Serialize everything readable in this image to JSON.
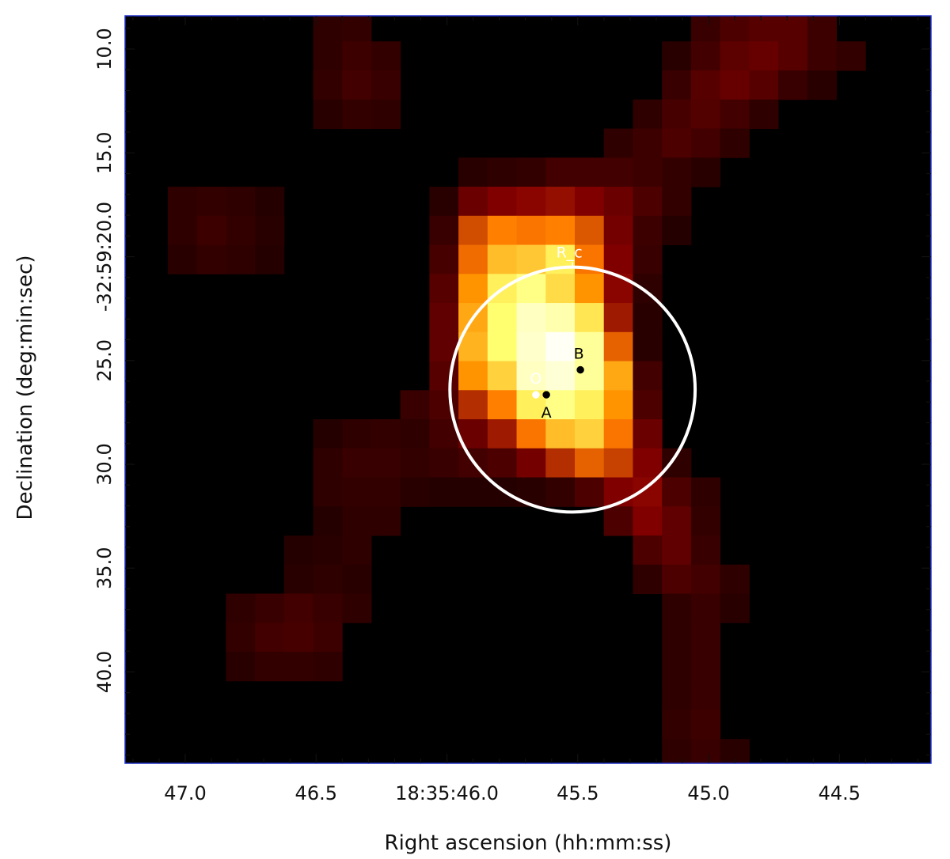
{
  "chart_data": {
    "type": "heatmap",
    "title": "",
    "xlabel": "Right ascension (hh:mm:ss)",
    "ylabel": "Declination (deg:min:sec)",
    "colormap": "afmhot",
    "frame_color": "#2233cc",
    "x_ticks": [
      {
        "value": 47.0,
        "label": "47.0"
      },
      {
        "value": 46.5,
        "label": "46.5"
      },
      {
        "value": 46.0,
        "label": "18:35:46.0"
      },
      {
        "value": 45.5,
        "label": "45.5"
      },
      {
        "value": 45.0,
        "label": "45.0"
      },
      {
        "value": 44.5,
        "label": "44.5"
      }
    ],
    "y_ticks": [
      {
        "value": 10.0,
        "label": "10.0"
      },
      {
        "value": 15.0,
        "label": "15.0"
      },
      {
        "value": 20.0,
        "label": "-32:59:20.0"
      },
      {
        "value": 25.0,
        "label": "25.0"
      },
      {
        "value": 30.0,
        "label": "30.0"
      },
      {
        "value": 35.0,
        "label": "35.0"
      },
      {
        "value": 40.0,
        "label": "40.0"
      }
    ],
    "xlim": [
      47.23,
      44.15
    ],
    "ylim": [
      44.4,
      8.4
    ],
    "grid": false,
    "pixels": {
      "x_start": 47.178,
      "dx": -0.1111,
      "y_start": 8.23,
      "dy": 1.4,
      "rows": [
        [
          0,
          0,
          0,
          0,
          0,
          0,
          0.04,
          0.05,
          0,
          0,
          0,
          0,
          0,
          0,
          0,
          0,
          0,
          0,
          0,
          0.06,
          0.1,
          0.12,
          0.12,
          0.07,
          0,
          0,
          0
        ],
        [
          0,
          0,
          0,
          0,
          0,
          0,
          0.04,
          0.07,
          0.05,
          0,
          0,
          0,
          0,
          0,
          0,
          0,
          0,
          0,
          0.03,
          0.08,
          0.13,
          0.15,
          0.12,
          0.07,
          0.05,
          0,
          0
        ],
        [
          0,
          0,
          0,
          0,
          0,
          0,
          0.05,
          0.08,
          0.06,
          0,
          0,
          0,
          0,
          0,
          0,
          0,
          0,
          0,
          0.06,
          0.12,
          0.15,
          0.12,
          0.06,
          0.03,
          0,
          0,
          0
        ],
        [
          0,
          0,
          0,
          0,
          0,
          0,
          0.03,
          0.05,
          0.04,
          0,
          0,
          0,
          0,
          0,
          0,
          0,
          0,
          0.04,
          0.09,
          0.11,
          0.08,
          0.04,
          0,
          0,
          0,
          0,
          0
        ],
        [
          0,
          0,
          0,
          0,
          0,
          0,
          0,
          0,
          0,
          0,
          0,
          0,
          0,
          0,
          0,
          0,
          0.04,
          0.07,
          0.1,
          0.08,
          0.04,
          0,
          0,
          0,
          0,
          0,
          0
        ],
        [
          0,
          0,
          0,
          0,
          0,
          0,
          0,
          0,
          0,
          0,
          0,
          0.03,
          0.04,
          0.05,
          0.08,
          0.08,
          0.08,
          0.07,
          0.05,
          0.03,
          0,
          0,
          0,
          0,
          0,
          0,
          0
        ],
        [
          0,
          0.04,
          0.05,
          0.04,
          0.02,
          0,
          0,
          0,
          0,
          0,
          0.03,
          0.16,
          0.2,
          0.22,
          0.24,
          0.2,
          0.16,
          0.1,
          0.05,
          0,
          0,
          0,
          0,
          0,
          0,
          0,
          0
        ],
        [
          0,
          0.04,
          0.07,
          0.05,
          0.03,
          0,
          0,
          0,
          0,
          0,
          0.06,
          0.36,
          0.46,
          0.44,
          0.46,
          0.38,
          0.18,
          0.07,
          0.02,
          0,
          0,
          0,
          0,
          0,
          0,
          0,
          0
        ],
        [
          0,
          0.03,
          0.05,
          0.04,
          0.02,
          0,
          0,
          0,
          0,
          0,
          0.09,
          0.42,
          0.58,
          0.6,
          0.68,
          0.44,
          0.2,
          0.06,
          0,
          0,
          0,
          0,
          0,
          0,
          0,
          0,
          0
        ],
        [
          0,
          0,
          0,
          0,
          0,
          0,
          0,
          0,
          0,
          0,
          0.12,
          0.5,
          0.68,
          0.76,
          0.64,
          0.5,
          0.22,
          0.04,
          0,
          0,
          0,
          0,
          0,
          0,
          0,
          0,
          0
        ],
        [
          0,
          0,
          0,
          0,
          0,
          0,
          0,
          0,
          0,
          0,
          0.14,
          0.54,
          0.72,
          0.88,
          0.84,
          0.66,
          0.26,
          0.03,
          0,
          0,
          0,
          0,
          0,
          0,
          0,
          0,
          0
        ],
        [
          0,
          0,
          0,
          0,
          0,
          0,
          0,
          0,
          0,
          0,
          0.14,
          0.56,
          0.72,
          0.9,
          0.98,
          0.8,
          0.4,
          0.03,
          0,
          0,
          0,
          0,
          0,
          0,
          0,
          0,
          0
        ],
        [
          0,
          0,
          0,
          0,
          0,
          0,
          0,
          0,
          0,
          0,
          0.12,
          0.5,
          0.62,
          0.88,
          0.92,
          0.8,
          0.54,
          0.08,
          0,
          0,
          0,
          0,
          0,
          0,
          0,
          0,
          0
        ],
        [
          0,
          0,
          0,
          0,
          0,
          0,
          0,
          0,
          0,
          0.06,
          0.1,
          0.3,
          0.46,
          0.68,
          0.76,
          0.68,
          0.5,
          0.1,
          0,
          0,
          0,
          0,
          0,
          0,
          0,
          0,
          0
        ],
        [
          0,
          0,
          0,
          0,
          0,
          0,
          0.02,
          0.04,
          0.05,
          0.04,
          0.08,
          0.16,
          0.26,
          0.44,
          0.58,
          0.62,
          0.44,
          0.16,
          0,
          0,
          0,
          0,
          0,
          0,
          0,
          0,
          0
        ],
        [
          0,
          0,
          0,
          0,
          0,
          0,
          0.04,
          0.06,
          0.06,
          0.05,
          0.06,
          0.08,
          0.1,
          0.18,
          0.3,
          0.4,
          0.34,
          0.2,
          0.04,
          0,
          0,
          0,
          0,
          0,
          0,
          0,
          0
        ],
        [
          0,
          0,
          0,
          0,
          0,
          0,
          0.04,
          0.05,
          0.05,
          0.03,
          0.02,
          0.02,
          0.02,
          0.03,
          0.05,
          0.1,
          0.2,
          0.22,
          0.1,
          0.04,
          0,
          0,
          0,
          0,
          0,
          0,
          0
        ],
        [
          0,
          0,
          0,
          0,
          0,
          0,
          0.02,
          0.04,
          0.04,
          0,
          0,
          0,
          0,
          0,
          0,
          0,
          0.1,
          0.2,
          0.14,
          0.05,
          0,
          0,
          0,
          0,
          0,
          0,
          0
        ],
        [
          0,
          0,
          0,
          0,
          0,
          0.02,
          0.03,
          0.04,
          0,
          0,
          0,
          0,
          0,
          0,
          0,
          0,
          0,
          0.1,
          0.14,
          0.06,
          0,
          0,
          0,
          0,
          0,
          0,
          0
        ],
        [
          0,
          0,
          0,
          0,
          0,
          0.03,
          0.04,
          0.03,
          0,
          0,
          0,
          0,
          0,
          0,
          0,
          0,
          0,
          0.04,
          0.1,
          0.08,
          0.04,
          0,
          0,
          0,
          0,
          0,
          0
        ],
        [
          0,
          0,
          0,
          0.04,
          0.06,
          0.08,
          0.06,
          0.04,
          0,
          0,
          0,
          0,
          0,
          0,
          0,
          0,
          0,
          0,
          0.04,
          0.06,
          0.03,
          0,
          0,
          0,
          0,
          0,
          0
        ],
        [
          0,
          0,
          0,
          0.05,
          0.08,
          0.09,
          0.07,
          0,
          0,
          0,
          0,
          0,
          0,
          0,
          0,
          0,
          0,
          0,
          0.04,
          0.06,
          0,
          0,
          0,
          0,
          0,
          0,
          0
        ],
        [
          0,
          0,
          0,
          0.03,
          0.05,
          0.05,
          0.04,
          0,
          0,
          0,
          0,
          0,
          0,
          0,
          0,
          0,
          0,
          0,
          0.04,
          0.06,
          0,
          0,
          0,
          0,
          0,
          0,
          0
        ],
        [
          0,
          0,
          0,
          0,
          0,
          0,
          0,
          0,
          0,
          0,
          0,
          0,
          0,
          0,
          0,
          0,
          0,
          0,
          0.04,
          0.06,
          0,
          0,
          0,
          0,
          0,
          0,
          0
        ],
        [
          0,
          0,
          0,
          0,
          0,
          0,
          0,
          0,
          0,
          0,
          0,
          0,
          0,
          0,
          0,
          0,
          0,
          0,
          0.05,
          0.07,
          0,
          0,
          0,
          0,
          0,
          0,
          0
        ],
        [
          0,
          0,
          0,
          0,
          0,
          0,
          0,
          0,
          0,
          0,
          0,
          0,
          0,
          0,
          0,
          0,
          0,
          0,
          0.04,
          0.06,
          0.03,
          0,
          0,
          0,
          0,
          0,
          0
        ],
        [
          0,
          0,
          0,
          0,
          0,
          0,
          0,
          0,
          0,
          0,
          0,
          0,
          0,
          0,
          0,
          0,
          0,
          0,
          0.02,
          0.05,
          0,
          0,
          0,
          0,
          0,
          0,
          0
        ]
      ]
    },
    "circle": {
      "center_ra": 45.52,
      "center_dec": 26.4,
      "radius_dec": 5.9,
      "color": "#ffffff",
      "label": "R_c"
    },
    "markers": [
      {
        "name": "O",
        "label": "O",
        "ra": 45.66,
        "dec": 26.65,
        "color": "#ffffff"
      },
      {
        "name": "A",
        "label": "A",
        "ra": 45.62,
        "dec": 26.65,
        "color": "#000000"
      },
      {
        "name": "B",
        "label": "B",
        "ra": 45.49,
        "dec": 25.45,
        "color": "#000000"
      }
    ]
  }
}
